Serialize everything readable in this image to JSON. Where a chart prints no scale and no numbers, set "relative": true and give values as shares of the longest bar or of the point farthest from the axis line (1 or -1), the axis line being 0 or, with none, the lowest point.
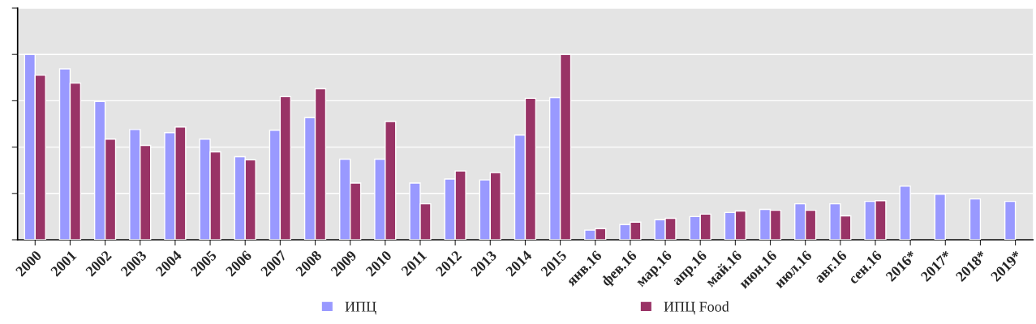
{
  "chart_data": {
    "type": "bar",
    "relative": true,
    "grid": "y",
    "legend": "bottom",
    "categories": [
      "2000",
      "2001",
      "2002",
      "2003",
      "2004",
      "2005",
      "2006",
      "2007",
      "2008",
      "2009",
      "2010",
      "2011",
      "2012",
      "2013",
      "2014",
      "2015",
      "янв.16",
      "фев.16",
      "мар.16",
      "апр.16",
      "май.16",
      "июн.16",
      "июл.16",
      "авг.16",
      "сен.16",
      "2016*",
      "2017*",
      "2018*",
      "2019*"
    ],
    "series": [
      {
        "name": "ИПЦ",
        "color": "#9999ff",
        "values": [
          1.0,
          0.922,
          0.746,
          0.595,
          0.578,
          0.543,
          0.448,
          0.591,
          0.659,
          0.435,
          0.435,
          0.306,
          0.328,
          0.323,
          0.565,
          0.767,
          0.052,
          0.082,
          0.108,
          0.125,
          0.147,
          0.164,
          0.194,
          0.194,
          0.207,
          0.289,
          0.246,
          0.22,
          0.207
        ]
      },
      {
        "name": "ИПЦ Food",
        "color": "#993366",
        "values": [
          0.888,
          0.845,
          0.543,
          0.509,
          0.608,
          0.474,
          0.431,
          0.772,
          0.815,
          0.306,
          0.638,
          0.194,
          0.371,
          0.362,
          0.763,
          1.0,
          0.06,
          0.095,
          0.116,
          0.138,
          0.155,
          0.159,
          0.159,
          0.129,
          0.211,
          null,
          null,
          null,
          null
        ]
      }
    ]
  }
}
